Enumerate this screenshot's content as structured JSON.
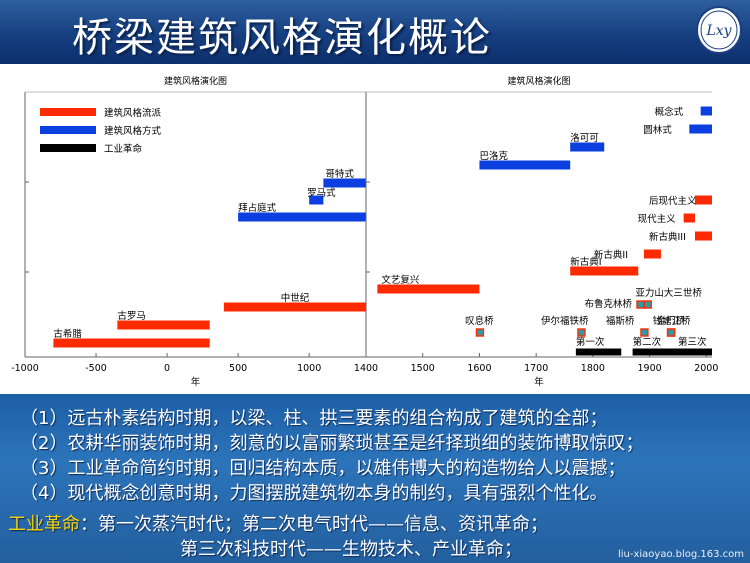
{
  "slide": {
    "title": "桥梁建筑风格演化概论",
    "logo_text": "Lxy",
    "watermark": "liu-xiaoyao.blog.163.com"
  },
  "notes": {
    "lines": [
      "（1）远古朴素结构时期，以梁、柱、拱三要素的组合构成了建筑的全部；",
      "（2）农耕华丽装饰时期，刻意的以富丽繁琐甚至是纤择琐细的装饰博取惊叹；",
      "（3）工业革命简约时期，回归结构本质，以雄伟博大的构造物给人以震撼；",
      "（4）现代概念创意时期，力图摆脱建筑物本身的制约，具有强烈个性化。"
    ],
    "industrial_label": "工业革命",
    "industrial_text": "：第一次蒸汽时代；第二次电气时代——信息、资讯革命；",
    "industrial_text2": "第三次科技时代——生物技术、产业革命；"
  },
  "colors": {
    "style": "#ff2a00",
    "method": "#0b3fe0",
    "industrial": "#000000",
    "bridge_fill": "#2f9aa6",
    "bridge_stroke": "#ff2a00"
  },
  "chart_data": [
    {
      "type": "bar",
      "title": "建筑风格演化图",
      "xlabel": "年",
      "xlim": [
        -1000,
        1400
      ],
      "x_ticks": [
        -1000,
        -500,
        0,
        500,
        1000,
        1400
      ],
      "legend": {
        "placement": "top-left",
        "items": [
          {
            "label": "建筑风格流派",
            "color": "#ff2a00"
          },
          {
            "label": "建筑风格方式",
            "color": "#0b3fe0"
          },
          {
            "label": "工业革命",
            "color": "#000000"
          }
        ]
      },
      "bars": [
        {
          "label": "古希腊",
          "start": -800,
          "end": 300,
          "kind": "style"
        },
        {
          "label": "古罗马",
          "start": -350,
          "end": 300,
          "kind": "style"
        },
        {
          "label": "中世纪",
          "start": 400,
          "end": 1400,
          "kind": "style"
        },
        {
          "label": "拜占庭式",
          "start": 500,
          "end": 1400,
          "kind": "method"
        },
        {
          "label": "罗马式",
          "start": 1000,
          "end": 1100,
          "kind": "method"
        },
        {
          "label": "哥特式",
          "start": 1100,
          "end": 1400,
          "kind": "method"
        }
      ]
    },
    {
      "type": "bar",
      "title": "建筑风格演化图",
      "xlabel": "年",
      "xlim": [
        1400,
        2010
      ],
      "x_ticks": [
        1400,
        1500,
        1600,
        1700,
        1800,
        1900,
        2000
      ],
      "bars": [
        {
          "label": "文艺复兴",
          "start": 1420,
          "end": 1600,
          "kind": "style"
        },
        {
          "label": "巴洛克",
          "start": 1600,
          "end": 1760,
          "kind": "method"
        },
        {
          "label": "洛可可",
          "start": 1760,
          "end": 1820,
          "kind": "method"
        },
        {
          "label": "新古典I",
          "start": 1760,
          "end": 1880,
          "kind": "style"
        },
        {
          "label": "新古典II",
          "start": 1890,
          "end": 1920,
          "kind": "style"
        },
        {
          "label": "新古典III",
          "start": 1980,
          "end": 2010,
          "kind": "style"
        },
        {
          "label": "现代主义",
          "start": 1960,
          "end": 1980,
          "kind": "style"
        },
        {
          "label": "后现代主义",
          "start": 1980,
          "end": 2010,
          "kind": "style"
        },
        {
          "label": "圆林式",
          "start": 1970,
          "end": 2010,
          "kind": "method"
        },
        {
          "label": "概念式",
          "start": 1990,
          "end": 2010,
          "kind": "method"
        },
        {
          "label": "第一次",
          "start": 1770,
          "end": 1850,
          "kind": "industrial"
        },
        {
          "label": "第二次",
          "start": 1870,
          "end": 1950,
          "kind": "industrial"
        },
        {
          "label": "第三次",
          "start": 1950,
          "end": 2010,
          "kind": "industrial"
        }
      ],
      "bridges": [
        {
          "label": "叹息桥",
          "year": 1600
        },
        {
          "label": "伊尔福铁桥",
          "year": 1779
        },
        {
          "label": "布鲁克林桥",
          "year": 1883
        },
        {
          "label": "福斯桥",
          "year": 1890
        },
        {
          "label": "亚力山大三世桥",
          "year": 1896
        },
        {
          "label": "钱塘江桥",
          "year": 1937
        },
        {
          "label": "金门桥",
          "year": 1937
        }
      ]
    }
  ]
}
